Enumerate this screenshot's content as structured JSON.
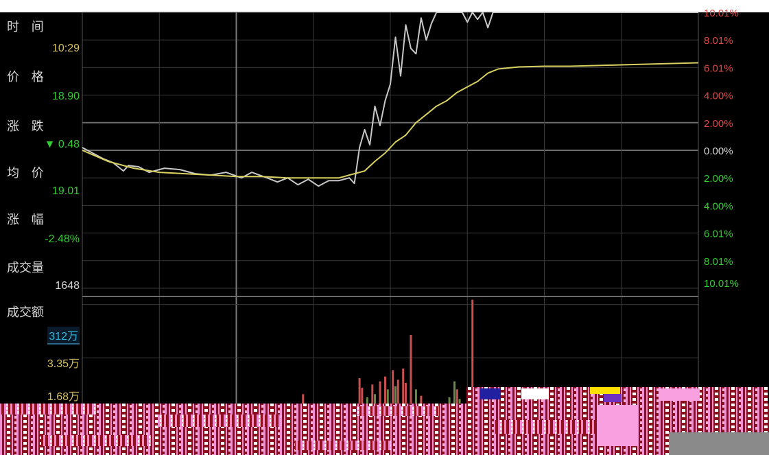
{
  "info": {
    "time_label": "时 间",
    "time_value": "10:29",
    "price_label": "价 格",
    "price_value": "18.90",
    "change_label": "涨 跌",
    "change_value": "▼ 0.48",
    "avg_label": "均 价",
    "avg_value": "19.01",
    "pct_label": "涨 幅",
    "pct_value": "-2.48%",
    "volume_label": "成交量",
    "volume_value": "1648",
    "amount_label": "成交额",
    "amount_value": "312万",
    "vol_tick_high": "3.35万",
    "vol_tick_low": "1.68万"
  },
  "colors": {
    "up": "#e04848",
    "down": "#33cc33",
    "price_line": "#c8c8c8",
    "avg_line": "#d8d060",
    "grid": "#3a3a3a",
    "text": "#d8d8d8",
    "amount": "#33bbdd",
    "vol_axis": "#d4c060"
  },
  "chart_data": {
    "type": "line",
    "x_range": [
      0,
      240
    ],
    "price_pct_range": [
      -10.01,
      10.01
    ],
    "right_axis_labels": [
      "10.01%",
      "8.01%",
      "6.01%",
      "4.00%",
      "2.00%",
      "0.00%",
      "2.00%",
      "4.00%",
      "6.01%",
      "8.01%",
      "10.01%"
    ],
    "series": [
      {
        "points": [
          [
            0,
            0.2
          ],
          [
            4,
            -0.2
          ],
          [
            8,
            -0.6
          ],
          [
            12,
            -0.9
          ],
          [
            16,
            -1.5
          ],
          [
            18,
            -1.1
          ],
          [
            22,
            -1.2
          ],
          [
            26,
            -1.6
          ],
          [
            32,
            -1.3
          ],
          [
            38,
            -1.4
          ],
          [
            44,
            -1.7
          ],
          [
            50,
            -1.8
          ],
          [
            56,
            -1.6
          ],
          [
            62,
            -2.0
          ],
          [
            66,
            -1.6
          ],
          [
            72,
            -2.0
          ],
          [
            76,
            -2.3
          ],
          [
            80,
            -2.0
          ],
          [
            84,
            -2.5
          ],
          [
            88,
            -2.1
          ],
          [
            92,
            -2.6
          ],
          [
            96,
            -2.2
          ],
          [
            100,
            -2.2
          ],
          [
            104,
            -2.0
          ],
          [
            106,
            -2.4
          ],
          [
            108,
            0.2
          ],
          [
            110,
            1.5
          ],
          [
            112,
            0.4
          ],
          [
            114,
            3.2
          ],
          [
            116,
            1.8
          ],
          [
            118,
            3.6
          ],
          [
            120,
            4.8
          ],
          [
            122,
            8.2
          ],
          [
            124,
            5.4
          ],
          [
            126,
            9.1
          ],
          [
            128,
            7.4
          ],
          [
            130,
            7.0
          ],
          [
            132,
            9.6
          ],
          [
            134,
            8.0
          ],
          [
            136,
            9.2
          ],
          [
            138,
            10.01
          ],
          [
            144,
            10.01
          ],
          [
            148,
            10.01
          ],
          [
            150,
            9.3
          ],
          [
            152,
            10.01
          ],
          [
            154,
            9.5
          ],
          [
            156,
            10.01
          ],
          [
            158,
            8.9
          ],
          [
            160,
            10.01
          ],
          [
            240,
            10.01
          ]
        ]
      },
      {
        "points": [
          [
            0,
            0.0
          ],
          [
            10,
            -0.8
          ],
          [
            20,
            -1.3
          ],
          [
            30,
            -1.6
          ],
          [
            40,
            -1.7
          ],
          [
            50,
            -1.8
          ],
          [
            60,
            -1.9
          ],
          [
            70,
            -1.9
          ],
          [
            80,
            -2.0
          ],
          [
            90,
            -2.0
          ],
          [
            100,
            -2.0
          ],
          [
            110,
            -1.5
          ],
          [
            114,
            -0.8
          ],
          [
            118,
            -0.2
          ],
          [
            122,
            0.6
          ],
          [
            126,
            1.1
          ],
          [
            130,
            2.0
          ],
          [
            134,
            2.6
          ],
          [
            138,
            3.2
          ],
          [
            142,
            3.6
          ],
          [
            146,
            4.2
          ],
          [
            150,
            4.6
          ],
          [
            154,
            5.0
          ],
          [
            158,
            5.6
          ],
          [
            162,
            5.9
          ],
          [
            170,
            6.05
          ],
          [
            180,
            6.1
          ],
          [
            190,
            6.1
          ],
          [
            200,
            6.15
          ],
          [
            210,
            6.2
          ],
          [
            220,
            6.25
          ],
          [
            230,
            6.3
          ],
          [
            240,
            6.35
          ]
        ]
      }
    ],
    "volume_bars": [
      {
        "x": 60,
        "v": 0.15,
        "c": "down"
      },
      {
        "x": 74,
        "v": 0.25,
        "c": "up"
      },
      {
        "x": 86,
        "v": 0.55,
        "c": "up"
      },
      {
        "x": 108,
        "v": 1.05,
        "c": "up"
      },
      {
        "x": 109,
        "v": 0.75,
        "c": "up"
      },
      {
        "x": 111,
        "v": 0.45,
        "c": "down"
      },
      {
        "x": 113,
        "v": 0.85,
        "c": "up"
      },
      {
        "x": 114,
        "v": 0.55,
        "c": "down"
      },
      {
        "x": 116,
        "v": 0.95,
        "c": "up"
      },
      {
        "x": 118,
        "v": 1.1,
        "c": "up"
      },
      {
        "x": 119,
        "v": 0.7,
        "c": "down"
      },
      {
        "x": 121,
        "v": 1.3,
        "c": "up"
      },
      {
        "x": 122,
        "v": 0.8,
        "c": "down"
      },
      {
        "x": 123,
        "v": 1.0,
        "c": "up"
      },
      {
        "x": 125,
        "v": 1.35,
        "c": "up"
      },
      {
        "x": 126,
        "v": 0.9,
        "c": "up"
      },
      {
        "x": 128,
        "v": 2.4,
        "c": "up"
      },
      {
        "x": 130,
        "v": 0.7,
        "c": "down"
      },
      {
        "x": 132,
        "v": 0.5,
        "c": "up"
      },
      {
        "x": 143,
        "v": 0.45,
        "c": "down"
      },
      {
        "x": 145,
        "v": 0.95,
        "c": "down"
      },
      {
        "x": 146,
        "v": 0.7,
        "c": "up"
      },
      {
        "x": 147,
        "v": 0.4,
        "c": "down"
      },
      {
        "x": 152,
        "v": 3.5,
        "c": "up"
      }
    ]
  }
}
